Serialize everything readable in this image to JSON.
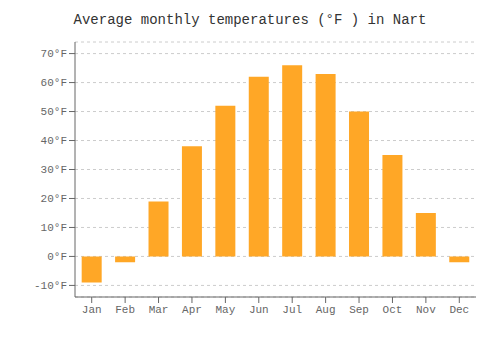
{
  "chart_data": {
    "type": "bar",
    "title": "Average monthly temperatures (°F ) in Nart",
    "categories": [
      "Jan",
      "Feb",
      "Mar",
      "Apr",
      "May",
      "Jun",
      "Jul",
      "Aug",
      "Sep",
      "Oct",
      "Nov",
      "Dec"
    ],
    "values": [
      -9,
      -2,
      19,
      38,
      52,
      62,
      66,
      63,
      50,
      35,
      15,
      -2
    ],
    "color": "#FFA726",
    "ylim": [
      -14,
      74
    ],
    "yticks": [
      {
        "value": -10,
        "label": "-10°F"
      },
      {
        "value": 0,
        "label": "0°F"
      },
      {
        "value": 10,
        "label": "10°F"
      },
      {
        "value": 20,
        "label": "20°F"
      },
      {
        "value": 30,
        "label": "30°F"
      },
      {
        "value": 40,
        "label": "40°F"
      },
      {
        "value": 50,
        "label": "50°F"
      },
      {
        "value": 60,
        "label": "60°F"
      },
      {
        "value": 70,
        "label": "70°F"
      }
    ],
    "grid": true
  }
}
